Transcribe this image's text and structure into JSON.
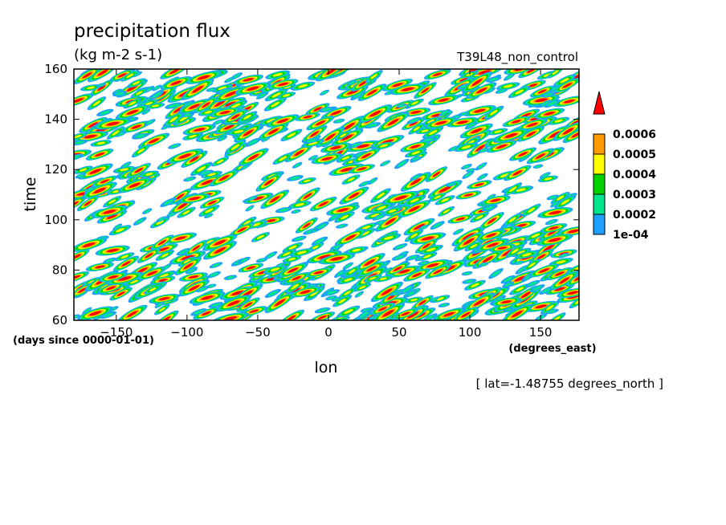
{
  "chart_data": {
    "type": "heatmap",
    "title": "precipitation flux",
    "units": "(kg m-2 s-1)",
    "run_label": "T39L48_non_control",
    "xlabel": "lon",
    "xunits": "(degrees_east)",
    "ylabel": "time",
    "yunits": "(days since 0000-01-01)",
    "footnote": "[ lat=-1.48755 degrees_north ]",
    "xlim": [
      -180,
      177.1875
    ],
    "ylim": [
      60,
      160
    ],
    "xticks": [
      -150,
      -100,
      -50,
      0,
      50,
      100,
      150
    ],
    "yticks": [
      60,
      80,
      100,
      120,
      140,
      160
    ],
    "colorbar": {
      "levels": [
        0.0001,
        0.0002,
        0.0003,
        0.0004,
        0.0005,
        0.0006
      ],
      "level_labels": [
        "1e-04",
        "0.0002",
        "0.0003",
        "0.0004",
        "0.0005",
        "0.0006"
      ],
      "colors": [
        "#1ea0ff",
        "#00e68c",
        "#00d200",
        "#ffff00",
        "#ff9a00",
        "#ff0000"
      ],
      "extend": "max"
    },
    "field_description": "Hovmoller of precipitation flux: many small scattered cells, most dense at times 60-90 and 130-160"
  },
  "colors": {
    "frame": "#000000",
    "background": "#ffffff"
  }
}
